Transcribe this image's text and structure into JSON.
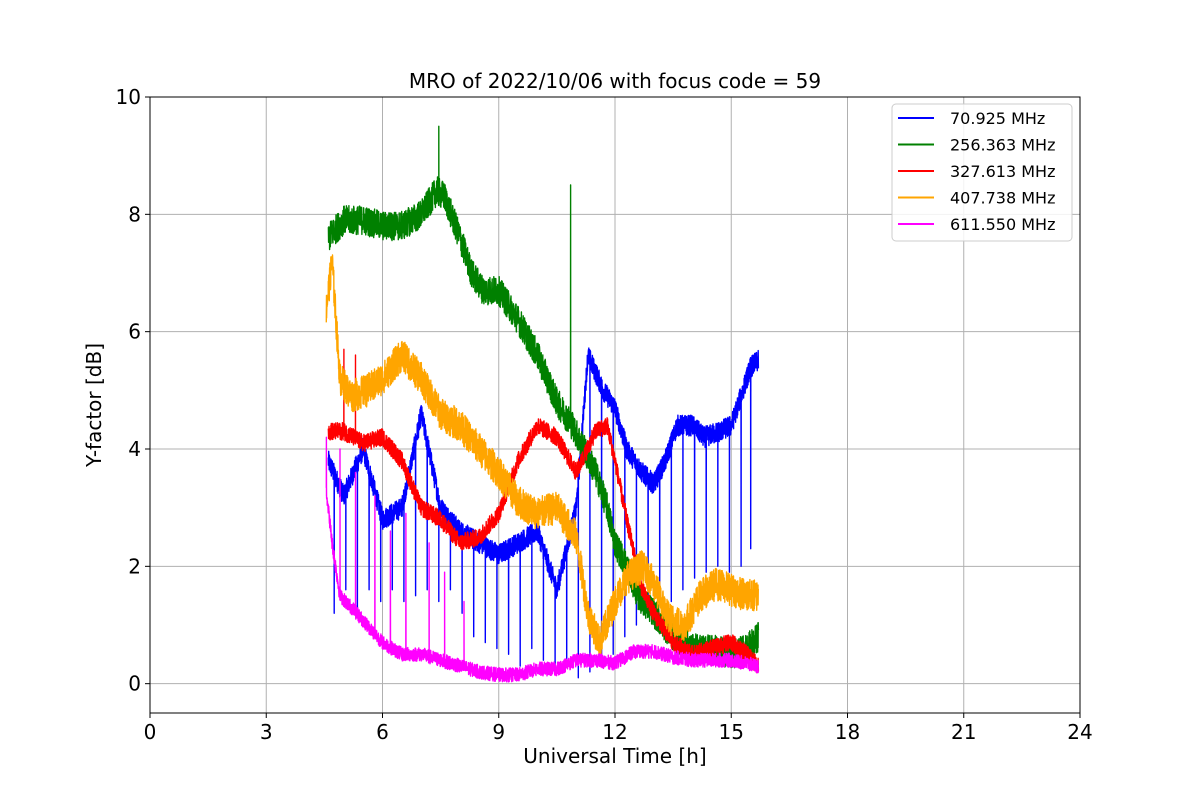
{
  "chart_data": {
    "type": "line",
    "title": "MRO of 2022/10/06 with focus code = 59",
    "xlabel": "Universal Time [h]",
    "ylabel": "Y-factor [dB]",
    "xlim": [
      0,
      24
    ],
    "ylim": [
      -0.5,
      10
    ],
    "xticks": [
      0,
      3,
      6,
      9,
      12,
      15,
      18,
      21,
      24
    ],
    "yticks": [
      0,
      2,
      4,
      6,
      8,
      10
    ],
    "x_tick_labels": [
      "0",
      "3",
      "6",
      "9",
      "12",
      "15",
      "18",
      "21",
      "24"
    ],
    "y_tick_labels": [
      "0",
      "2",
      "4",
      "6",
      "8",
      "10"
    ],
    "grid": true,
    "legend_position": "upper right",
    "series": [
      {
        "name": "70.925 MHz",
        "color": "#0000ff",
        "baseline": [
          [
            4.6,
            3.8
          ],
          [
            5.0,
            3.2
          ],
          [
            5.5,
            4.0
          ],
          [
            6.0,
            2.8
          ],
          [
            6.5,
            3.0
          ],
          [
            7.0,
            4.6
          ],
          [
            7.5,
            3.0
          ],
          [
            8.0,
            2.6
          ],
          [
            8.5,
            2.4
          ],
          [
            9.0,
            2.2
          ],
          [
            9.5,
            2.4
          ],
          [
            10.0,
            2.6
          ],
          [
            10.5,
            1.6
          ],
          [
            11.0,
            3.0
          ],
          [
            11.3,
            5.6
          ],
          [
            11.7,
            5.0
          ],
          [
            12.0,
            4.7
          ],
          [
            12.3,
            4.0
          ],
          [
            12.7,
            3.6
          ],
          [
            13.0,
            3.4
          ],
          [
            13.3,
            3.8
          ],
          [
            13.6,
            4.4
          ],
          [
            14.0,
            4.4
          ],
          [
            14.3,
            4.2
          ],
          [
            14.7,
            4.3
          ],
          [
            15.0,
            4.4
          ],
          [
            15.3,
            5.0
          ],
          [
            15.5,
            5.4
          ],
          [
            15.7,
            5.5
          ]
        ],
        "noise": 0.18,
        "dips": [
          [
            4.75,
            1.2
          ],
          [
            5.05,
            1.6
          ],
          [
            5.35,
            1.3
          ],
          [
            5.65,
            1.6
          ],
          [
            5.95,
            1.4
          ],
          [
            6.25,
            1.6
          ],
          [
            6.55,
            1.4
          ],
          [
            6.85,
            1.5
          ],
          [
            7.15,
            1.6
          ],
          [
            7.45,
            1.4
          ],
          [
            7.75,
            1.6
          ],
          [
            8.05,
            1.2
          ],
          [
            8.35,
            0.8
          ],
          [
            8.65,
            0.7
          ],
          [
            8.95,
            0.6
          ],
          [
            9.25,
            0.5
          ],
          [
            9.55,
            0.3
          ],
          [
            9.85,
            0.6
          ],
          [
            10.15,
            0.4
          ],
          [
            10.45,
            0.3
          ],
          [
            10.75,
            0.3
          ],
          [
            11.05,
            0.1
          ],
          [
            11.35,
            0.2
          ],
          [
            11.65,
            0.4
          ],
          [
            11.95,
            0.5
          ],
          [
            12.25,
            0.8
          ],
          [
            12.55,
            1.0
          ],
          [
            12.85,
            1.2
          ],
          [
            13.15,
            1.5
          ],
          [
            13.45,
            1.4
          ],
          [
            13.75,
            1.6
          ],
          [
            14.05,
            1.8
          ],
          [
            14.35,
            1.9
          ],
          [
            14.65,
            2.0
          ],
          [
            14.95,
            1.9
          ],
          [
            15.25,
            2.0
          ],
          [
            15.5,
            2.3
          ]
        ]
      },
      {
        "name": "256.363 MHz",
        "color": "#008000",
        "baseline": [
          [
            4.6,
            7.6
          ],
          [
            5.0,
            7.9
          ],
          [
            5.5,
            7.9
          ],
          [
            6.0,
            7.8
          ],
          [
            6.5,
            7.8
          ],
          [
            7.0,
            8.0
          ],
          [
            7.4,
            8.4
          ],
          [
            7.6,
            8.3
          ],
          [
            8.0,
            7.6
          ],
          [
            8.3,
            7.0
          ],
          [
            8.6,
            6.7
          ],
          [
            9.0,
            6.7
          ],
          [
            9.5,
            6.2
          ],
          [
            10.0,
            5.6
          ],
          [
            10.5,
            4.8
          ],
          [
            10.9,
            4.4
          ],
          [
            11.2,
            4.0
          ],
          [
            11.5,
            3.6
          ],
          [
            11.8,
            3.0
          ],
          [
            12.0,
            2.4
          ],
          [
            12.3,
            2.0
          ],
          [
            12.6,
            1.5
          ],
          [
            13.0,
            1.2
          ],
          [
            13.5,
            0.8
          ],
          [
            14.0,
            0.6
          ],
          [
            14.5,
            0.6
          ],
          [
            15.0,
            0.5
          ],
          [
            15.4,
            0.6
          ],
          [
            15.7,
            0.8
          ]
        ],
        "noise": 0.25,
        "spikes": [
          [
            7.45,
            9.5
          ],
          [
            10.85,
            8.5
          ]
        ]
      },
      {
        "name": "327.613 MHz",
        "color": "#ff0000",
        "baseline": [
          [
            4.6,
            4.3
          ],
          [
            5.0,
            4.3
          ],
          [
            5.5,
            4.1
          ],
          [
            6.0,
            4.2
          ],
          [
            6.5,
            3.8
          ],
          [
            7.0,
            3.0
          ],
          [
            7.5,
            2.8
          ],
          [
            8.0,
            2.4
          ],
          [
            8.5,
            2.5
          ],
          [
            9.0,
            2.9
          ],
          [
            9.5,
            3.8
          ],
          [
            10.0,
            4.4
          ],
          [
            10.5,
            4.2
          ],
          [
            11.0,
            3.6
          ],
          [
            11.5,
            4.3
          ],
          [
            11.8,
            4.4
          ],
          [
            12.0,
            3.8
          ],
          [
            12.3,
            2.8
          ],
          [
            12.7,
            1.6
          ],
          [
            13.0,
            1.2
          ],
          [
            13.5,
            0.7
          ],
          [
            14.0,
            0.5
          ],
          [
            14.5,
            0.6
          ],
          [
            15.0,
            0.7
          ],
          [
            15.4,
            0.5
          ],
          [
            15.7,
            0.3
          ]
        ],
        "noise": 0.15,
        "spikes": [
          [
            5.0,
            5.7
          ],
          [
            5.3,
            5.6
          ]
        ]
      },
      {
        "name": "407.738 MHz",
        "color": "#ffa500",
        "baseline": [
          [
            4.55,
            6.4
          ],
          [
            4.7,
            7.2
          ],
          [
            4.9,
            5.2
          ],
          [
            5.2,
            4.9
          ],
          [
            5.6,
            5.0
          ],
          [
            6.0,
            5.2
          ],
          [
            6.5,
            5.6
          ],
          [
            7.0,
            5.2
          ],
          [
            7.5,
            4.6
          ],
          [
            8.0,
            4.4
          ],
          [
            8.5,
            4.0
          ],
          [
            9.0,
            3.6
          ],
          [
            9.5,
            3.1
          ],
          [
            10.0,
            2.9
          ],
          [
            10.5,
            3.0
          ],
          [
            11.0,
            2.5
          ],
          [
            11.3,
            1.2
          ],
          [
            11.6,
            0.7
          ],
          [
            12.0,
            1.4
          ],
          [
            12.3,
            1.8
          ],
          [
            12.7,
            2.0
          ],
          [
            13.0,
            1.7
          ],
          [
            13.4,
            1.1
          ],
          [
            13.8,
            1.0
          ],
          [
            14.2,
            1.5
          ],
          [
            14.6,
            1.7
          ],
          [
            15.0,
            1.6
          ],
          [
            15.4,
            1.5
          ],
          [
            15.7,
            1.5
          ]
        ],
        "noise": 0.28
      },
      {
        "name": "611.550 MHz",
        "color": "#ff00ff",
        "baseline": [
          [
            4.55,
            3.3
          ],
          [
            4.7,
            2.4
          ],
          [
            4.9,
            1.5
          ],
          [
            5.2,
            1.3
          ],
          [
            5.6,
            1.0
          ],
          [
            6.0,
            0.7
          ],
          [
            6.5,
            0.5
          ],
          [
            7.0,
            0.5
          ],
          [
            7.5,
            0.4
          ],
          [
            8.0,
            0.3
          ],
          [
            8.5,
            0.2
          ],
          [
            9.0,
            0.15
          ],
          [
            9.5,
            0.15
          ],
          [
            10.0,
            0.25
          ],
          [
            10.5,
            0.25
          ],
          [
            11.0,
            0.4
          ],
          [
            11.5,
            0.4
          ],
          [
            12.0,
            0.35
          ],
          [
            12.5,
            0.55
          ],
          [
            13.0,
            0.55
          ],
          [
            13.5,
            0.45
          ],
          [
            14.0,
            0.4
          ],
          [
            14.5,
            0.4
          ],
          [
            15.0,
            0.4
          ],
          [
            15.7,
            0.3
          ]
        ],
        "noise": 0.12,
        "spikes": [
          [
            4.55,
            4.2
          ],
          [
            4.9,
            4.0
          ],
          [
            5.3,
            3.6
          ],
          [
            5.8,
            3.2
          ],
          [
            6.2,
            2.6
          ],
          [
            6.6,
            2.9
          ],
          [
            7.2,
            2.4
          ],
          [
            7.6,
            1.9
          ],
          [
            8.1,
            1.4
          ]
        ]
      }
    ]
  }
}
